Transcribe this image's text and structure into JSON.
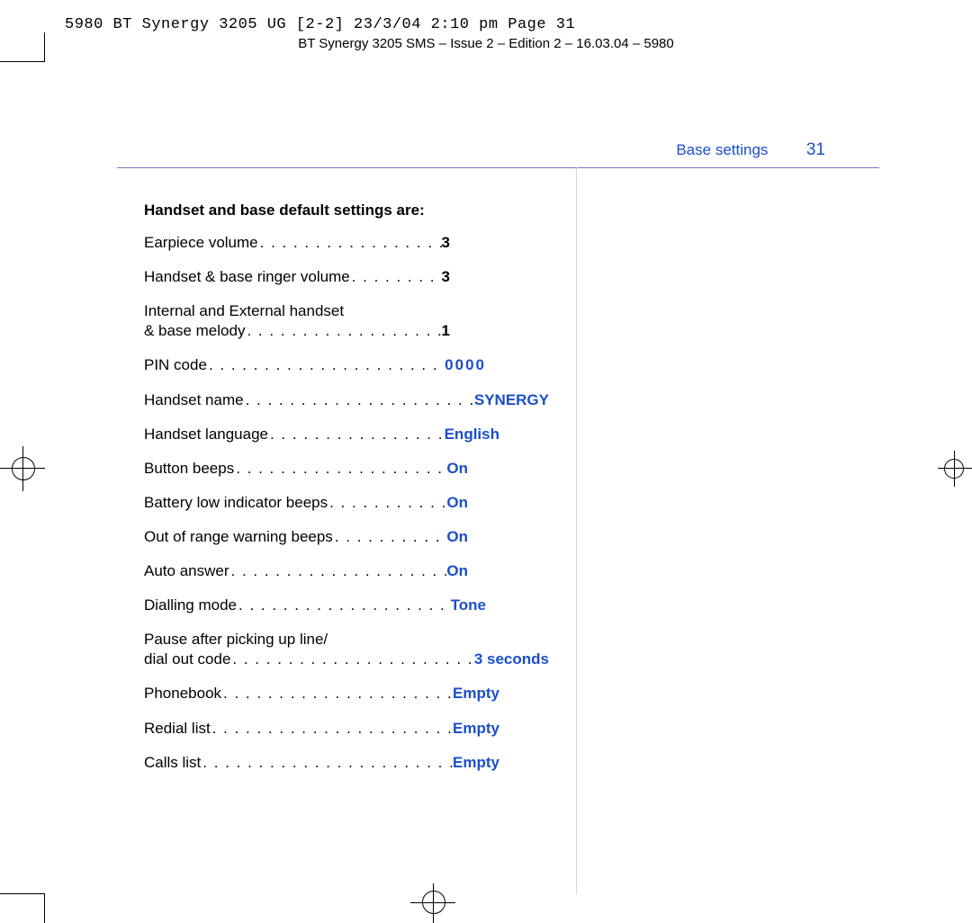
{
  "print_slug": "5980 BT Synergy 3205 UG [2-2]  23/3/04  2:10 pm  Page 31",
  "doc_header": "BT Synergy 3205 SMS – Issue 2 – Edition 2 – 16.03.04 – 5980",
  "running_head": {
    "section": "Base settings",
    "page_number": "31"
  },
  "colors": {
    "accent_blue": "#1a4ec9",
    "rule": "#6b79c6",
    "divider": "#d5d5e6",
    "text": "#000000",
    "background": "#ffffff"
  },
  "typography": {
    "body_size_pt": 13,
    "slug_family": "monospace"
  },
  "heading": "Handset and base default settings are:",
  "settings": [
    {
      "label": "Earpiece volume",
      "value": "3",
      "style": "num",
      "multiline": false
    },
    {
      "label": "Handset & base ringer volume",
      "value": "3",
      "style": "num",
      "multiline": false
    },
    {
      "label_line1": "Internal and External handset",
      "label": "& base melody",
      "value": "1",
      "style": "num",
      "multiline": true
    },
    {
      "label": "PIN code",
      "value": "0000",
      "style": "bluewide",
      "multiline": false,
      "row": "w-pin"
    },
    {
      "label": "Handset name",
      "value": "SYNERGY",
      "style": "blue",
      "multiline": false,
      "row": "wide"
    },
    {
      "label": "Handset language",
      "value": "English",
      "style": "blue",
      "multiline": false,
      "row": "w-english"
    },
    {
      "label": "Button beeps",
      "value": "On",
      "style": "blue",
      "multiline": false,
      "row": "w-on"
    },
    {
      "label": "Battery low indicator beeps",
      "value": "On",
      "style": "blue",
      "multiline": false,
      "row": "w-on"
    },
    {
      "label": "Out of range warning beeps",
      "value": "On",
      "style": "blue",
      "multiline": false,
      "row": "w-on"
    },
    {
      "label": "Auto answer",
      "value": "On",
      "style": "blue",
      "multiline": false,
      "row": "w-on"
    },
    {
      "label": "Dialling mode",
      "value": "Tone",
      "style": "blue",
      "multiline": false,
      "row": "w-tone"
    },
    {
      "label_line1": "Pause after picking up line/",
      "label": "dial out code",
      "value": "3 seconds",
      "style": "blue",
      "multiline": true,
      "row": "wide"
    },
    {
      "label": "Phonebook",
      "value": "Empty",
      "style": "blue",
      "multiline": false,
      "row": "w-empty"
    },
    {
      "label": "Redial list",
      "value": "Empty",
      "style": "blue",
      "multiline": false,
      "row": "w-empty"
    },
    {
      "label": "Calls list",
      "value": "Empty",
      "style": "blue",
      "multiline": false,
      "row": "w-empty"
    }
  ]
}
